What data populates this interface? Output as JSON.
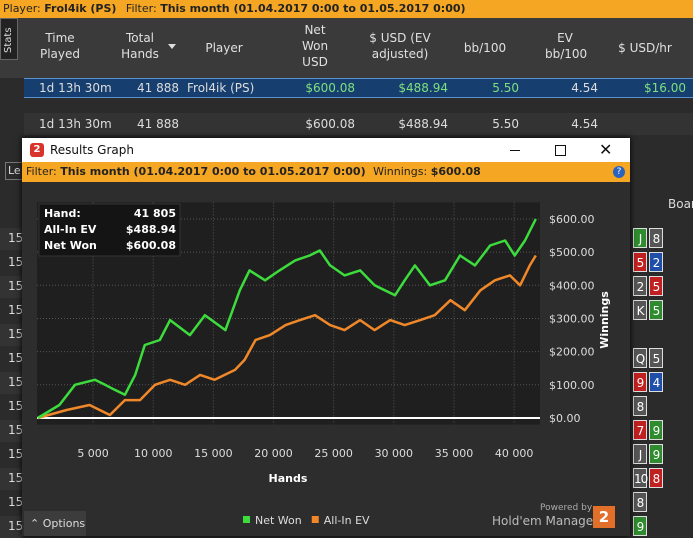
{
  "top_bar": {
    "player_label": "Player:",
    "player": "Frol4ik (PS)",
    "filter_label": "Filter:",
    "filter": "This month (01.04.2017 0:00 to 01.05.2017 0:00)"
  },
  "stats_tab": "Stats",
  "table": {
    "columns": [
      "Time Played",
      "Total Hands",
      "Player",
      "Net Won USD",
      "$ USD (EV adjusted)",
      "bb/100",
      "EV bb/100",
      "$ USD/hr"
    ],
    "rows": [
      [
        "1d 13h 30m",
        "41 888",
        "Frol4ik (PS)",
        "$600.08",
        "$488.94",
        "5.50",
        "4.54",
        "$16.00"
      ]
    ],
    "summary": {
      "time": "1d 13h 30m",
      "hands": "41 888",
      "net_won": "$600.08",
      "ev": "$488.94",
      "bb100": "5.50",
      "ev_bb100": "4.54"
    }
  },
  "background": {
    "left_tab": "Le",
    "board_header": "Boar",
    "left_rows": [
      "15",
      "15",
      "15",
      "15",
      "15",
      "15",
      "15",
      "15",
      "15",
      "15",
      "15",
      "15",
      "15"
    ],
    "cards": [
      [
        {
          "rank": "J",
          "color": "#2e8b2e"
        },
        {
          "rank": "8",
          "color": "#555"
        }
      ],
      [
        {
          "rank": "5",
          "color": "#c02020"
        },
        {
          "rank": "2",
          "color": "#1f4fa8"
        }
      ],
      [
        {
          "rank": "2",
          "color": "#555"
        },
        {
          "rank": "5",
          "color": "#c02020"
        }
      ],
      [
        {
          "rank": "K",
          "color": "#555"
        },
        {
          "rank": "5",
          "color": "#2e8b2e"
        }
      ],
      [],
      [
        {
          "rank": "Q",
          "color": "#555"
        },
        {
          "rank": "5",
          "color": "#555"
        }
      ],
      [
        {
          "rank": "9",
          "color": "#c02020"
        },
        {
          "rank": "4",
          "color": "#1f4fa8"
        }
      ],
      [
        {
          "rank": "8",
          "color": "#555"
        }
      ],
      [
        {
          "rank": "7",
          "color": "#c02020"
        },
        {
          "rank": "9",
          "color": "#2e8b2e"
        }
      ],
      [
        {
          "rank": "J",
          "color": "#555"
        },
        {
          "rank": "9",
          "color": "#2e8b2e"
        }
      ],
      [
        {
          "rank": "10",
          "color": "#555"
        },
        {
          "rank": "8",
          "color": "#c02020"
        }
      ],
      [
        {
          "rank": "8",
          "color": "#555"
        }
      ],
      [
        {
          "rank": "9",
          "color": "#2e8b2e"
        }
      ]
    ]
  },
  "window": {
    "title": "Results Graph",
    "filter_label": "Filter:",
    "filter": "This month (01.04.2017 0:00 to 01.05.2017 0:00)",
    "winnings_label": "Winnings:",
    "winnings": "$600.08",
    "options": "Options",
    "powered_by": "Powered by",
    "brand": "Hold'em Manager",
    "brand_logo": "2"
  },
  "chart_data": {
    "type": "line",
    "xlabel": "Hands",
    "ylabel": "Winnings",
    "info": [
      {
        "label": "Hand:",
        "value": "41 805"
      },
      {
        "label": "All-In EV",
        "value": "$488.94"
      },
      {
        "label": "Net Won",
        "value": "$600.08"
      }
    ],
    "xlim": [
      340,
      42150
    ],
    "ylim": [
      -20,
      650
    ],
    "xticks": [
      {
        "value": 5000,
        "label": "5 000"
      },
      {
        "value": 10000,
        "label": "10 000"
      },
      {
        "value": 15000,
        "label": "15 000"
      },
      {
        "value": 20000,
        "label": "20 000"
      },
      {
        "value": 25000,
        "label": "25 000"
      },
      {
        "value": 30000,
        "label": "30 000"
      },
      {
        "value": 35000,
        "label": "35 000"
      },
      {
        "value": 40000,
        "label": "40 000"
      }
    ],
    "yticks": [
      {
        "value": 0,
        "label": "$0.00"
      },
      {
        "value": 100,
        "label": "$100.00"
      },
      {
        "value": 200,
        "label": "$200.00"
      },
      {
        "value": 300,
        "label": "$300.00"
      },
      {
        "value": 400,
        "label": "$400.00"
      },
      {
        "value": 500,
        "label": "$500.00"
      },
      {
        "value": 600,
        "label": "$600.00"
      }
    ],
    "grid": true,
    "series": [
      {
        "name": "Net Won",
        "color": "#3ddc3d",
        "x": [
          400,
          2200,
          3500,
          5150,
          6000,
          6800,
          7650,
          8500,
          9300,
          10550,
          11400,
          13050,
          14300,
          16000,
          17200,
          18000,
          19300,
          20500,
          21800,
          23000,
          23850,
          24700,
          25900,
          27200,
          28400,
          30100,
          30900,
          31750,
          33000,
          34250,
          35500,
          36750,
          38000,
          39250,
          40050,
          40900,
          41805
        ],
        "values": [
          0,
          39,
          100,
          115,
          100,
          85,
          70,
          130,
          220,
          235,
          295,
          250,
          310,
          265,
          385,
          445,
          415,
          445,
          475,
          490,
          505,
          460,
          430,
          445,
          400,
          370,
          415,
          460,
          400,
          415,
          490,
          460,
          520,
          535,
          490,
          535,
          600
        ]
      },
      {
        "name": "All-In EV",
        "color": "#f0882a",
        "x": [
          400,
          2800,
          4700,
          6400,
          7650,
          8900,
          10150,
          11400,
          12650,
          13900,
          15100,
          16800,
          17600,
          18500,
          19700,
          21000,
          22200,
          23450,
          24700,
          25900,
          27200,
          28400,
          29700,
          30900,
          32200,
          33400,
          34700,
          35900,
          37200,
          38400,
          39650,
          40500,
          41300,
          41805
        ],
        "values": [
          0,
          24,
          39,
          9,
          54,
          54,
          100,
          115,
          100,
          130,
          115,
          145,
          175,
          235,
          250,
          280,
          295,
          310,
          280,
          265,
          295,
          265,
          295,
          280,
          295,
          310,
          355,
          325,
          385,
          415,
          430,
          400,
          460,
          490
        ]
      }
    ]
  }
}
